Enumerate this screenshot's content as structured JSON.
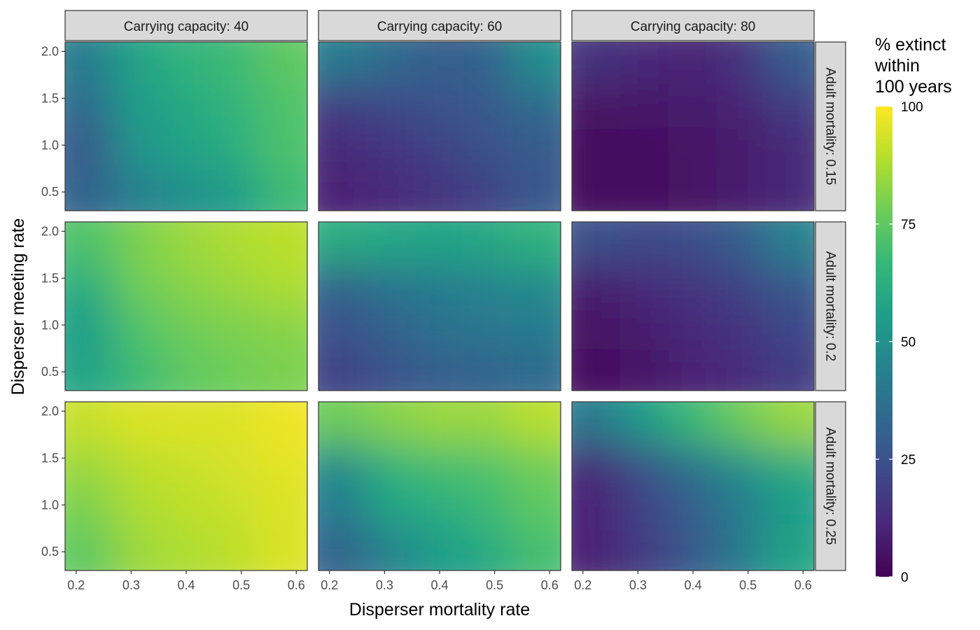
{
  "chart_data": {
    "type": "heatmap",
    "xlabel": "Disperser mortality rate",
    "ylabel": "Disperser meeting rate",
    "xlim": [
      0.18,
      0.62
    ],
    "ylim": [
      0.3,
      2.1
    ],
    "x_ticks": [
      "0.2",
      "0.3",
      "0.4",
      "0.5",
      "0.6"
    ],
    "y_ticks": [
      "0.5",
      "1.0",
      "1.5",
      "2.0"
    ],
    "x_grid": [
      0.2,
      0.3,
      0.4,
      0.5,
      0.6
    ],
    "y_grid": [
      0.5,
      1.0,
      1.5,
      2.0
    ],
    "facet_cols": [
      "Carrying capacity: 40",
      "Carrying capacity: 60",
      "Carrying capacity: 80"
    ],
    "facet_rows": [
      "Adult mortality: 0.15",
      "Adult mortality: 0.2",
      "Adult mortality: 0.25"
    ],
    "legend": {
      "title": [
        "% extinct",
        "within",
        "100 years"
      ],
      "ticks": [
        "100",
        "75",
        "50",
        "25",
        "0"
      ],
      "range": [
        0,
        100
      ],
      "position": "right",
      "colormap": "viridis"
    },
    "panels": [
      {
        "row": 0,
        "col": 0,
        "values": [
          [
            42,
            58,
            65,
            68,
            75
          ],
          [
            35,
            55,
            60,
            65,
            72
          ],
          [
            28,
            52,
            58,
            62,
            72
          ],
          [
            32,
            44,
            50,
            55,
            68
          ]
        ]
      },
      {
        "row": 0,
        "col": 1,
        "values": [
          [
            42,
            35,
            30,
            32,
            50
          ],
          [
            18,
            22,
            25,
            28,
            35
          ],
          [
            12,
            15,
            20,
            25,
            28
          ],
          [
            10,
            12,
            15,
            20,
            28
          ]
        ]
      },
      {
        "row": 0,
        "col": 2,
        "values": [
          [
            15,
            12,
            10,
            15,
            30
          ],
          [
            5,
            6,
            8,
            10,
            18
          ],
          [
            3,
            4,
            5,
            7,
            12
          ],
          [
            3,
            4,
            5,
            8,
            12
          ]
        ]
      },
      {
        "row": 1,
        "col": 0,
        "values": [
          [
            72,
            80,
            85,
            88,
            90
          ],
          [
            62,
            78,
            82,
            85,
            88
          ],
          [
            55,
            72,
            78,
            80,
            82
          ],
          [
            58,
            68,
            75,
            78,
            80
          ]
        ]
      },
      {
        "row": 1,
        "col": 1,
        "values": [
          [
            62,
            60,
            58,
            60,
            65
          ],
          [
            32,
            38,
            42,
            45,
            48
          ],
          [
            25,
            32,
            38,
            40,
            42
          ],
          [
            20,
            25,
            30,
            32,
            35
          ]
        ]
      },
      {
        "row": 1,
        "col": 2,
        "values": [
          [
            25,
            22,
            24,
            30,
            45
          ],
          [
            8,
            12,
            15,
            20,
            28
          ],
          [
            5,
            8,
            12,
            15,
            22
          ],
          [
            4,
            6,
            10,
            12,
            18
          ]
        ]
      },
      {
        "row": 2,
        "col": 0,
        "values": [
          [
            92,
            95,
            95,
            95,
            98
          ],
          [
            85,
            90,
            92,
            94,
            96
          ],
          [
            80,
            88,
            90,
            92,
            95
          ],
          [
            75,
            85,
            88,
            90,
            95
          ]
        ]
      },
      {
        "row": 2,
        "col": 1,
        "values": [
          [
            78,
            82,
            85,
            85,
            90
          ],
          [
            48,
            65,
            70,
            72,
            78
          ],
          [
            42,
            58,
            62,
            68,
            75
          ],
          [
            32,
            45,
            55,
            60,
            70
          ]
        ]
      },
      {
        "row": 2,
        "col": 2,
        "values": [
          [
            42,
            55,
            68,
            78,
            85
          ],
          [
            12,
            25,
            38,
            50,
            62
          ],
          [
            10,
            20,
            30,
            42,
            55
          ],
          [
            10,
            18,
            28,
            42,
            58
          ]
        ]
      }
    ]
  }
}
